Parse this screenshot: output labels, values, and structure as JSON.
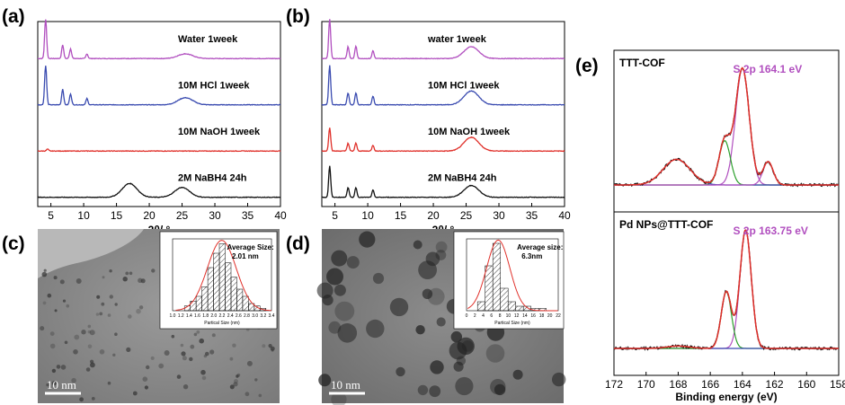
{
  "panels": {
    "a": "(a)",
    "b": "(b)",
    "c": "(c)",
    "d": "(d)",
    "e": "(e)"
  },
  "tem": {
    "c_scale": "10 nm",
    "d_scale": "10 nm"
  },
  "colors": {
    "purple": "#b14fbf",
    "blue": "#3a4bb0",
    "red": "#e0302a",
    "black": "#111111",
    "green": "#2ca02c"
  },
  "chart_data": [
    {
      "id": "a",
      "type": "line",
      "xlabel": "2θ/ °",
      "xlim": [
        3,
        40
      ],
      "xticks": [
        5,
        10,
        15,
        20,
        25,
        30,
        35,
        40
      ],
      "series": [
        {
          "name": "Water 1week",
          "color": "#b14fbf",
          "peaks": [
            [
              4.2,
              1.0
            ],
            [
              6.8,
              0.35
            ],
            [
              8.0,
              0.25
            ],
            [
              10.5,
              0.12
            ],
            [
              25.5,
              0.12
            ]
          ]
        },
        {
          "name": "10M HCl 1week",
          "color": "#3a4bb0",
          "peaks": [
            [
              4.2,
              1.0
            ],
            [
              6.8,
              0.4
            ],
            [
              8.0,
              0.28
            ],
            [
              10.5,
              0.16
            ],
            [
              25.5,
              0.18
            ]
          ]
        },
        {
          "name": "10M NaOH 1week",
          "color": "#e0302a",
          "peaks": [
            [
              4.5,
              0.05
            ]
          ]
        },
        {
          "name": "2M NaBH4 24h",
          "color": "#111111",
          "peaks": [
            [
              17,
              0.35
            ],
            [
              25,
              0.25
            ]
          ]
        }
      ]
    },
    {
      "id": "b",
      "type": "line",
      "xlabel": "2θ/ °",
      "xlim": [
        3,
        40
      ],
      "xticks": [
        5,
        10,
        15,
        20,
        25,
        30,
        35,
        40
      ],
      "series": [
        {
          "name": "water  1week",
          "color": "#b14fbf",
          "peaks": [
            [
              4.2,
              1.0
            ],
            [
              7.0,
              0.3
            ],
            [
              8.2,
              0.32
            ],
            [
              10.8,
              0.2
            ],
            [
              25.8,
              0.3
            ]
          ]
        },
        {
          "name": "10M HCl 1week",
          "color": "#3a4bb0",
          "peaks": [
            [
              4.2,
              1.0
            ],
            [
              7.0,
              0.3
            ],
            [
              8.2,
              0.3
            ],
            [
              10.8,
              0.22
            ],
            [
              25.8,
              0.35
            ]
          ]
        },
        {
          "name": "10M NaOH 1week",
          "color": "#e0302a",
          "peaks": [
            [
              4.2,
              0.6
            ],
            [
              7.0,
              0.2
            ],
            [
              8.2,
              0.2
            ],
            [
              10.8,
              0.15
            ],
            [
              25.8,
              0.35
            ]
          ]
        },
        {
          "name": "2M NaBH4 24h",
          "color": "#111111",
          "peaks": [
            [
              4.2,
              0.8
            ],
            [
              7.0,
              0.25
            ],
            [
              8.2,
              0.25
            ],
            [
              10.8,
              0.18
            ],
            [
              25.8,
              0.3
            ]
          ]
        }
      ]
    },
    {
      "id": "c-hist",
      "type": "bar",
      "title": "Average Size:",
      "subtitle": "2.01 nm",
      "xlabel": "Partical Size (nm)",
      "xticks": [
        "1.0",
        "1.2",
        "1.4",
        "1.6",
        "1.8",
        "2.0",
        "2.2",
        "2.4",
        "2.6",
        "2.8",
        "3.0",
        "3.2",
        "3.4"
      ],
      "bins": [
        1.5,
        1.6,
        1.7,
        1.8,
        1.9,
        2.0,
        2.1,
        2.2,
        2.3,
        2.4,
        2.5,
        2.6,
        2.7,
        2.8
      ],
      "values": [
        2,
        4,
        6,
        10,
        18,
        24,
        28,
        20,
        14,
        9,
        6,
        3,
        2,
        1
      ],
      "ylim": [
        0,
        30
      ]
    },
    {
      "id": "d-hist",
      "type": "bar",
      "title": "Average size:",
      "subtitle": "6.3nm",
      "xlabel": "Partical Size (nm)",
      "xticks": [
        "0",
        "2",
        "4",
        "6",
        "8",
        "10",
        "12",
        "14",
        "16",
        "18",
        "20",
        "22"
      ],
      "bins": [
        2,
        4,
        6,
        8,
        10,
        12,
        14,
        16,
        18
      ],
      "values": [
        4,
        20,
        30,
        10,
        4,
        2,
        2,
        1,
        1
      ],
      "ylim": [
        0,
        32
      ]
    },
    {
      "id": "e-top",
      "type": "line",
      "title": "TTT-COF",
      "annotation": "S 2p 164.1 eV",
      "xlim": [
        172,
        158
      ],
      "components": [
        {
          "color": "#b14fbf",
          "center": 164.0,
          "height": 1.0,
          "width": 0.6
        },
        {
          "color": "#2ca02c",
          "center": 165.1,
          "height": 0.38,
          "width": 0.5
        },
        {
          "color": "#3a4bb0",
          "center": 168.1,
          "height": 0.22,
          "width": 1.2
        },
        {
          "color": "#b14fbf",
          "center": 162.4,
          "height": 0.2,
          "width": 0.45
        }
      ]
    },
    {
      "id": "e-bottom",
      "type": "line",
      "title": "Pd NPs@TTT-COF",
      "annotation": "S 2p 163.75 eV",
      "xlabel": "Binding energy (eV)",
      "xlim": [
        172,
        158
      ],
      "xticks": [
        172,
        170,
        168,
        166,
        164,
        162,
        160,
        158
      ],
      "components": [
        {
          "color": "#b14fbf",
          "center": 163.8,
          "height": 1.0,
          "width": 0.5
        },
        {
          "color": "#2ca02c",
          "center": 165.0,
          "height": 0.48,
          "width": 0.45
        },
        {
          "color": "#3a4bb0",
          "center": 168.0,
          "height": 0.02,
          "width": 1.0
        }
      ]
    }
  ]
}
